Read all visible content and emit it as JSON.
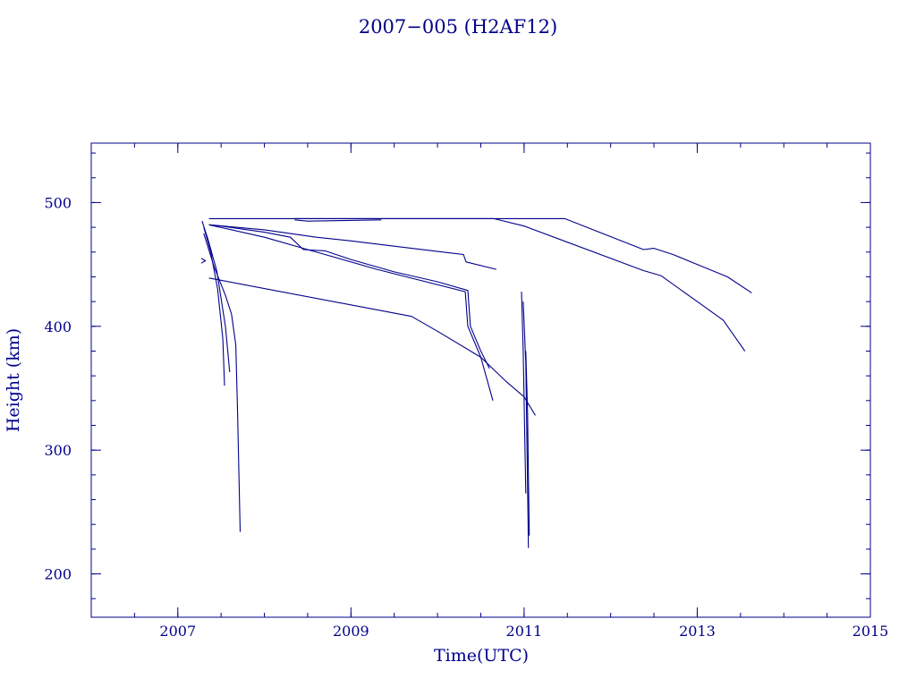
{
  "chart_data": {
    "type": "line",
    "title": "2007−005 (H2AF12)",
    "xlabel": "Time(UTC)",
    "ylabel": "Height (km)",
    "xlim": [
      2006,
      2015
    ],
    "ylim": [
      165,
      548
    ],
    "x_ticks": [
      2007,
      2009,
      2011,
      2013,
      2015
    ],
    "x_tick_labels": [
      "2007",
      "2009",
      "2011",
      "2013",
      "2015"
    ],
    "y_ticks": [
      200,
      300,
      400,
      500
    ],
    "y_tick_labels": [
      "200",
      "300",
      "400",
      "500"
    ],
    "x_minor_step": 0.5,
    "y_minor_step": 20,
    "grid": false,
    "color": "#00008b",
    "series": [
      {
        "points": [
          [
            2007.36,
            487
          ],
          [
            2011.47,
            487
          ],
          [
            2012.38,
            462
          ],
          [
            2012.5,
            463
          ],
          [
            2012.72,
            458
          ],
          [
            2013.0,
            450
          ],
          [
            2013.35,
            440
          ],
          [
            2013.63,
            427
          ]
        ]
      },
      {
        "points": [
          [
            2008.35,
            487
          ],
          [
            2010.65,
            487
          ],
          [
            2011.0,
            481
          ],
          [
            2012.38,
            445
          ],
          [
            2012.58,
            441
          ],
          [
            2013.0,
            420
          ],
          [
            2013.3,
            405
          ],
          [
            2013.55,
            380
          ]
        ]
      },
      {
        "points": [
          [
            2008.35,
            486
          ],
          [
            2008.5,
            485
          ],
          [
            2009.35,
            486
          ]
        ]
      },
      {
        "points": [
          [
            2007.36,
            482
          ],
          [
            2008.0,
            478
          ],
          [
            2008.6,
            472
          ],
          [
            2009.0,
            469
          ],
          [
            2009.7,
            463
          ],
          [
            2010.3,
            458
          ],
          [
            2010.33,
            452
          ],
          [
            2010.68,
            446
          ]
        ]
      },
      {
        "points": [
          [
            2007.36,
            482
          ],
          [
            2007.5,
            481
          ],
          [
            2008.0,
            476
          ],
          [
            2008.3,
            472
          ],
          [
            2008.45,
            462
          ],
          [
            2008.7,
            461
          ],
          [
            2009.0,
            454
          ],
          [
            2009.5,
            444
          ],
          [
            2010.0,
            436
          ],
          [
            2010.35,
            429
          ],
          [
            2010.38,
            400
          ],
          [
            2010.5,
            380
          ],
          [
            2010.6,
            366
          ]
        ]
      },
      {
        "points": [
          [
            2007.36,
            482
          ],
          [
            2008.0,
            472
          ],
          [
            2008.5,
            462
          ],
          [
            2009.3,
            446
          ],
          [
            2010.32,
            428
          ],
          [
            2010.35,
            400
          ],
          [
            2010.5,
            375
          ],
          [
            2010.64,
            340
          ]
        ]
      },
      {
        "points": [
          [
            2007.36,
            439
          ],
          [
            2009.7,
            408
          ],
          [
            2010.0,
            396
          ],
          [
            2010.5,
            375
          ],
          [
            2010.8,
            355
          ],
          [
            2011.0,
            343
          ],
          [
            2011.13,
            328
          ]
        ]
      },
      {
        "points": [
          [
            2007.28,
            485
          ],
          [
            2007.35,
            470
          ],
          [
            2007.45,
            445
          ],
          [
            2007.55,
            400
          ],
          [
            2007.6,
            363
          ]
        ]
      },
      {
        "points": [
          [
            2007.3,
            480
          ],
          [
            2007.38,
            460
          ],
          [
            2007.46,
            430
          ],
          [
            2007.52,
            390
          ],
          [
            2007.54,
            352
          ]
        ]
      },
      {
        "points": [
          [
            2007.3,
            475
          ],
          [
            2007.42,
            448
          ],
          [
            2007.55,
            425
          ],
          [
            2007.62,
            410
          ],
          [
            2007.67,
            385
          ],
          [
            2007.69,
            330
          ],
          [
            2007.72,
            234
          ]
        ]
      },
      {
        "points": [
          [
            2010.97,
            428
          ],
          [
            2010.99,
            380
          ],
          [
            2011.0,
            340
          ],
          [
            2011.01,
            300
          ],
          [
            2011.02,
            265
          ]
        ]
      },
      {
        "points": [
          [
            2010.99,
            420
          ],
          [
            2011.02,
            370
          ],
          [
            2011.03,
            320
          ],
          [
            2011.04,
            270
          ],
          [
            2011.05,
            221
          ]
        ]
      },
      {
        "points": [
          [
            2011.02,
            380
          ],
          [
            2011.04,
            330
          ],
          [
            2011.05,
            280
          ],
          [
            2011.06,
            231
          ]
        ]
      },
      {
        "points": [
          [
            2007.27,
            455
          ],
          [
            2007.32,
            453
          ],
          [
            2007.27,
            451
          ]
        ]
      }
    ]
  }
}
